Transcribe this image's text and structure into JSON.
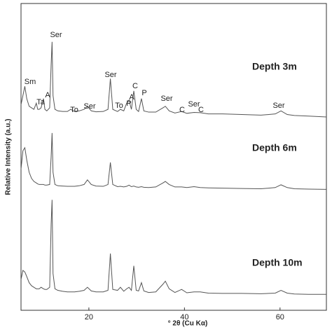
{
  "chart_data": {
    "type": "line",
    "x_label": "° 2θ (Cu Kα)",
    "y_label": "Relative Intensity (a.u.)",
    "x": [
      5.8,
      6.2,
      6.6,
      7,
      7.5,
      8,
      8.5,
      9,
      9.3,
      9.6,
      10,
      10.5,
      10.8,
      11.2,
      11.8,
      12.1,
      12.3,
      12.5,
      12.9,
      13.5,
      14.5,
      15.5,
      16.2,
      17,
      18,
      19,
      19.7,
      20.5,
      21.5,
      23,
      24,
      24.5,
      25,
      26,
      26.6,
      27.3,
      27.9,
      28.4,
      28.9,
      29.4,
      29.9,
      30.4,
      31,
      31.5,
      32.5,
      34,
      35.5,
      36,
      36.8,
      38,
      39.4,
      40.5,
      42,
      43.3,
      45,
      48,
      52,
      56,
      59,
      60.2,
      61.5,
      63,
      66,
      69.7
    ],
    "series": [
      {
        "name": "Depth 3m",
        "color": "#555555",
        "values": [
          67,
          70,
          73,
          69,
          66.5,
          66,
          65.5,
          67.5,
          65.5,
          65.5,
          66,
          69,
          65.5,
          65,
          66,
          80,
          87.5,
          70,
          65.5,
          65,
          64.8,
          64.8,
          65.5,
          64.8,
          65,
          65.5,
          66.5,
          65,
          64.7,
          64.8,
          65.5,
          75.5,
          65.5,
          64.8,
          65.5,
          65,
          67.5,
          68.5,
          65.5,
          71.5,
          65.5,
          64.8,
          69,
          65,
          64.6,
          64.6,
          66,
          66.5,
          65,
          64.3,
          64.8,
          64.2,
          64.5,
          64.4,
          64,
          64,
          63.8,
          63.6,
          64,
          65,
          63.8,
          63.5,
          63.3,
          63
        ]
      },
      {
        "name": "Depth 6m",
        "color": "#555555",
        "values": [
          46,
          52,
          53,
          49,
          45,
          43,
          42,
          41.5,
          41.2,
          41,
          41,
          41,
          40.8,
          40.8,
          41,
          50,
          57.8,
          45,
          41,
          40.6,
          40.5,
          40.4,
          40.4,
          40.4,
          40.6,
          41,
          42.5,
          41,
          40.5,
          40.4,
          41,
          48.2,
          41,
          40.3,
          40.4,
          40.2,
          40.4,
          40.8,
          40.3,
          40.5,
          40.2,
          40.1,
          40.3,
          40.1,
          40,
          40.2,
          41.5,
          42,
          41,
          40.2,
          40.2,
          40,
          40.3,
          40,
          39.9,
          39.8,
          39.7,
          39.6,
          40,
          40.9,
          40,
          39.6,
          39.5,
          39.4
        ]
      },
      {
        "name": "Depth 10m",
        "color": "#555555",
        "values": [
          10,
          13,
          12.5,
          11,
          9,
          8,
          7.5,
          7,
          7,
          7,
          7.5,
          7,
          6.8,
          6.8,
          7.5,
          28,
          36,
          12,
          7,
          6.5,
          6.2,
          6,
          6,
          6,
          6.2,
          6.5,
          7.5,
          6.3,
          6,
          6,
          6.5,
          18.5,
          6.8,
          6.5,
          7.5,
          6.2,
          7,
          7.5,
          6.5,
          14.5,
          6.5,
          6.3,
          9,
          6.3,
          5.8,
          6,
          8.5,
          9.5,
          7,
          5.8,
          6.8,
          5.7,
          6,
          6,
          5.6,
          5.5,
          5.5,
          5.4,
          5.6,
          6.5,
          5.6,
          5.3,
          5.2,
          5.2
        ]
      }
    ],
    "annotations": [
      "Sm",
      "Ta",
      "A",
      "Ser",
      "To",
      "Ser",
      "Ser",
      "To",
      "P",
      "A",
      "C",
      "P",
      "Ser",
      "C",
      "Ser",
      "C",
      "Ser"
    ],
    "xlim": [
      5.8,
      69.7
    ],
    "ylim": [
      0,
      100
    ],
    "xticks": [
      20,
      40,
      60
    ]
  }
}
